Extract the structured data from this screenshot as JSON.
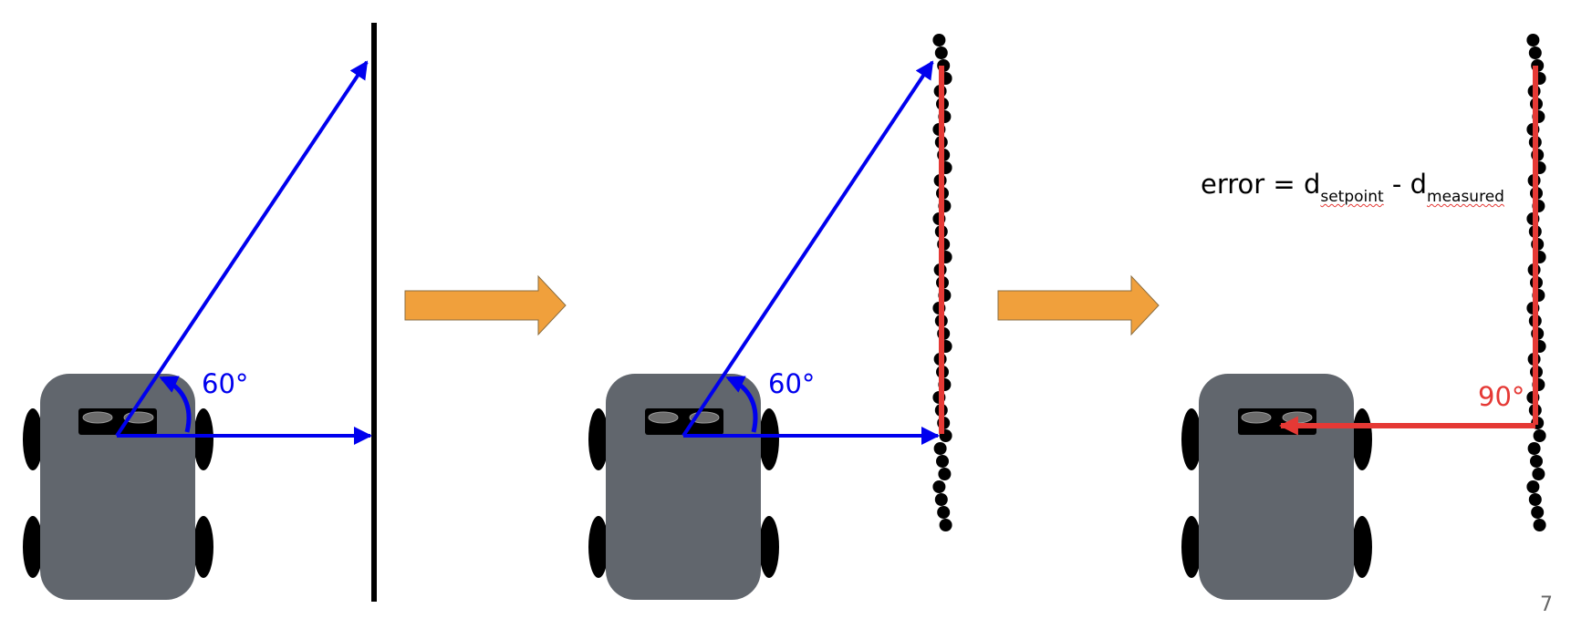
{
  "colors": {
    "vector": "#0000ee",
    "error_line": "#e53935",
    "robot_body": "#61666d",
    "arrow_fill": "#f0a03c",
    "wall": "#000000"
  },
  "panels": [
    {
      "angle_label": "60°"
    },
    {
      "angle_label": "60°"
    },
    {
      "angle_label": "90°"
    }
  ],
  "equation": {
    "lhs": "error = d",
    "sub1": "setpoint",
    "minus": " - d",
    "sub2": "measured"
  },
  "page_number": "7"
}
